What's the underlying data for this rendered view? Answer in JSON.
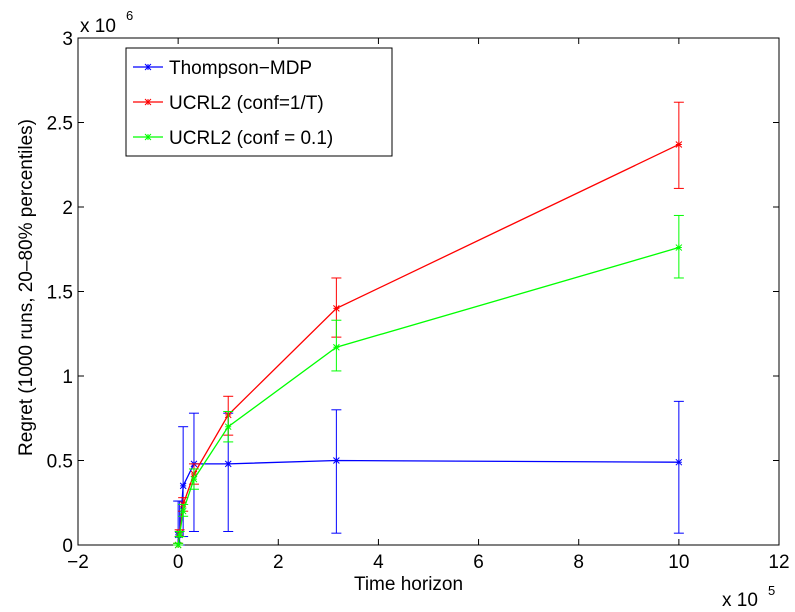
{
  "chart_data": {
    "type": "line",
    "title": "",
    "xlabel": "Time horizon",
    "ylabel": "Regret (1000 runs, 20–80% percentiles)",
    "x_multiplier_label": "x 10",
    "x_multiplier_exp": "5",
    "y_multiplier_label": "x 10",
    "y_multiplier_exp": "6",
    "xlim": [
      -2,
      12
    ],
    "ylim": [
      0,
      3
    ],
    "xticks": [
      -2,
      0,
      2,
      4,
      6,
      8,
      10,
      12
    ],
    "xtick_labels": [
      "−2",
      "0",
      "2",
      "4",
      "6",
      "8",
      "10",
      "12"
    ],
    "yticks": [
      0,
      0.5,
      1,
      1.5,
      2,
      2.5,
      3
    ],
    "ytick_labels": [
      "0",
      "0.5",
      "1",
      "1.5",
      "2",
      "2.5",
      "3"
    ],
    "grid": false,
    "legend_position": "top-left",
    "series": [
      {
        "name": "Thompson−MDP",
        "color": "#0000ff",
        "x": [
          0.0,
          0.03,
          0.1,
          0.316,
          1.0,
          3.16,
          10.0
        ],
        "y": [
          0.06,
          0.06,
          0.35,
          0.48,
          0.48,
          0.5,
          0.49
        ],
        "err_low": [
          0.0,
          0.0,
          0.05,
          0.08,
          0.08,
          0.07,
          0.07
        ],
        "err_high": [
          0.26,
          0.26,
          0.7,
          0.78,
          0.78,
          0.8,
          0.85
        ]
      },
      {
        "name": "UCRL2 (conf=1/T)",
        "color": "#ff0000",
        "x": [
          0.0,
          0.03,
          0.1,
          0.316,
          1.0,
          3.16,
          10.0
        ],
        "y": [
          0.0,
          0.07,
          0.24,
          0.42,
          0.77,
          1.4,
          2.37
        ],
        "err_low": [
          0.0,
          0.05,
          0.2,
          0.36,
          0.65,
          1.23,
          2.11
        ],
        "err_high": [
          0.01,
          0.09,
          0.28,
          0.48,
          0.88,
          1.58,
          2.62
        ]
      },
      {
        "name": "UCRL2 (conf = 0.1)",
        "color": "#00ff00",
        "x": [
          0.0,
          0.03,
          0.1,
          0.316,
          1.0,
          3.16,
          10.0
        ],
        "y": [
          0.0,
          0.06,
          0.2,
          0.39,
          0.7,
          1.17,
          1.76
        ],
        "err_low": [
          0.0,
          0.05,
          0.17,
          0.33,
          0.61,
          1.03,
          1.58
        ],
        "err_high": [
          0.01,
          0.08,
          0.24,
          0.45,
          0.79,
          1.33,
          1.95
        ]
      }
    ]
  }
}
